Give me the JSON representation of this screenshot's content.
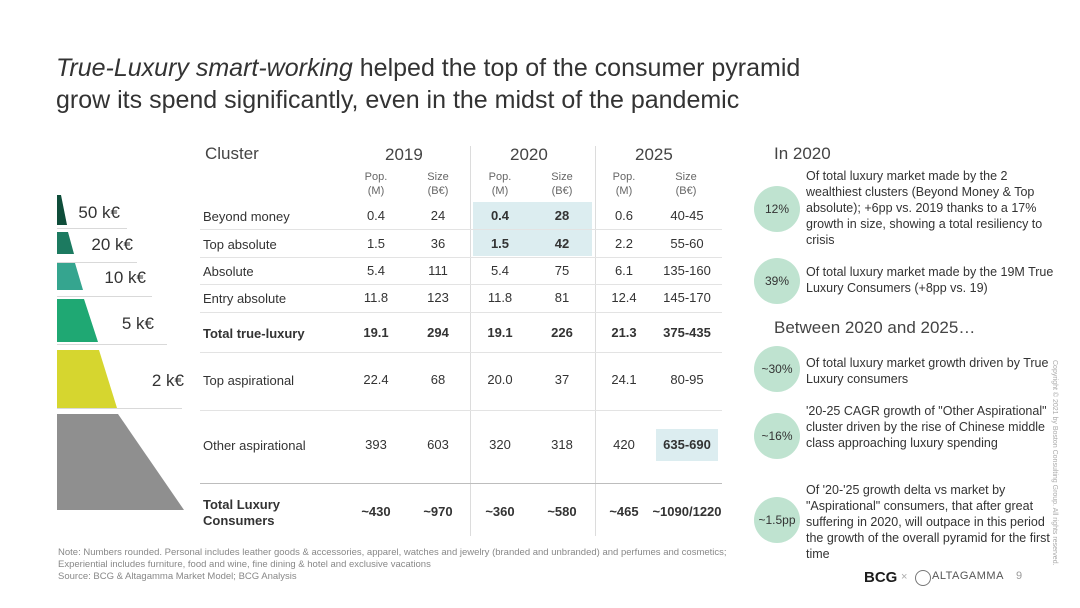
{
  "title": {
    "emphasis": "True-Luxury smart-working",
    "rest_line1": " helped the top of the consumer pyramid",
    "line2": "grow its spend significantly, even in the midst of the pandemic"
  },
  "pyramid": {
    "colors": [
      "#0e4d3a",
      "#1c7a60",
      "#35a58f",
      "#1fa873",
      "#d6d62f",
      "#8f8f8f"
    ],
    "labels": [
      "50 k€",
      "20 k€",
      "10 k€",
      "5 k€",
      "2 k€"
    ]
  },
  "table": {
    "cluster_header": "Cluster",
    "years": [
      "2019",
      "2020",
      "2025"
    ],
    "sub_headers": [
      {
        "line1": "Pop.",
        "line2": "(M)"
      },
      {
        "line1": "Size",
        "line2": "(B€)"
      }
    ],
    "rows": [
      {
        "label": "Beyond money",
        "values": [
          "0.4",
          "24",
          "0.4",
          "28",
          "0.6",
          "40-45"
        ]
      },
      {
        "label": "Top absolute",
        "values": [
          "1.5",
          "36",
          "1.5",
          "42",
          "2.2",
          "55-60"
        ]
      },
      {
        "label": "Absolute",
        "values": [
          "5.4",
          "111",
          "5.4",
          "75",
          "6.1",
          "135-160"
        ]
      },
      {
        "label": "Entry absolute",
        "values": [
          "11.8",
          "123",
          "11.8",
          "81",
          "12.4",
          "145-170"
        ]
      },
      {
        "label": "Total true-luxury",
        "values": [
          "19.1",
          "294",
          "19.1",
          "226",
          "21.3",
          "375-435"
        ]
      },
      {
        "label": "Top aspirational",
        "values": [
          "22.4",
          "68",
          "20.0",
          "37",
          "24.1",
          "80-95"
        ]
      },
      {
        "label": "Other aspirational",
        "values": [
          "393",
          "603",
          "320",
          "318",
          "420",
          "635-690"
        ]
      },
      {
        "label_line1": "Total Luxury",
        "label_line2": "Consumers",
        "values": [
          "~430",
          "~970",
          "~360",
          "~580",
          "~465",
          "~1090/1220"
        ]
      }
    ]
  },
  "right_panel": {
    "heading1": "In 2020",
    "heading2": "Between 2020 and 2025…",
    "items": [
      {
        "badge": "12%",
        "text": "Of total luxury market made by the 2 wealthiest clusters (Beyond Money & Top absolute); +6pp vs. 2019 thanks to a 17% growth in size, showing a total resiliency to crisis"
      },
      {
        "badge": "39%",
        "text": "Of total luxury market made by the 19M True Luxury Consumers (+8pp vs. 19)"
      },
      {
        "badge": "~30%",
        "text": "Of total luxury market growth driven by True Luxury consumers"
      },
      {
        "badge": "~16%",
        "text": "'20-25 CAGR growth of \"Other Aspirational\" cluster driven by the rise of Chinese middle class approaching luxury spending"
      },
      {
        "badge": "~1.5pp",
        "text": "Of '20-'25 growth delta vs market by \"Aspirational\" consumers, that after great suffering in 2020, will outpace in this period the growth of the overall pyramid for the first time"
      }
    ],
    "badge_color": "#bfe3d0"
  },
  "footer": {
    "note_line1": "Note: Numbers rounded. Personal includes leather goods & accessories, apparel, watches and jewelry (branded and unbranded) and perfumes and cosmetics;",
    "note_line2": "Experiential includes furniture, food and wine, fine dining & hotel and exclusive vacations",
    "source": "Source: BCG & Altagamma Market Model; BCG Analysis",
    "copyright": "Copyright © 2021 by Boston Consulting Group. All rights reserved.",
    "page_number": "9",
    "logo_bcg": "BCG",
    "logo_sep": "×",
    "logo_altagamma": "ALTAGAMMA"
  }
}
